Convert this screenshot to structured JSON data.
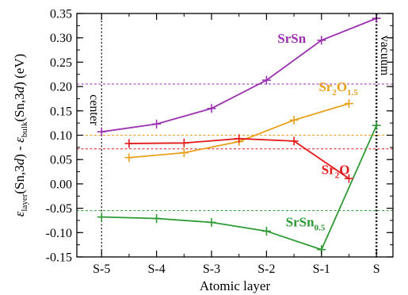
{
  "chart_data": {
    "type": "line",
    "xlabel": "Atomic layer",
    "ylabel": {
      "parts": [
        {
          "t": "ε",
          "style": "italic"
        },
        {
          "t": "layer",
          "style": "sub"
        },
        {
          "t": "(Sn,3",
          "style": "normal"
        },
        {
          "t": "d",
          "style": "italic"
        },
        {
          "t": ") - ",
          "style": "normal"
        },
        {
          "t": "ε",
          "style": "italic"
        },
        {
          "t": "bulk",
          "style": "sub"
        },
        {
          "t": "(Sn,3",
          "style": "normal"
        },
        {
          "t": "d",
          "style": "italic"
        },
        {
          "t": ") (eV)",
          "style": "normal"
        }
      ]
    },
    "x_ticks": [
      {
        "pos": 0,
        "label": "S-5"
      },
      {
        "pos": 1,
        "label": "S-4"
      },
      {
        "pos": 2,
        "label": "S-3"
      },
      {
        "pos": 3,
        "label": "S-2"
      },
      {
        "pos": 4,
        "label": "S-1"
      },
      {
        "pos": 5,
        "label": "S"
      }
    ],
    "xlim": [
      -0.45,
      5.3
    ],
    "ylim": [
      -0.15,
      0.35
    ],
    "y_ticks": [
      -0.15,
      -0.1,
      -0.05,
      0.0,
      0.05,
      0.1,
      0.15,
      0.2,
      0.25,
      0.3,
      0.35
    ],
    "y_minor_step": 0.025,
    "series": [
      {
        "name": "SrSn",
        "color": "#9b30b0",
        "x": [
          0,
          1,
          2,
          3,
          4,
          5
        ],
        "y": [
          0.107,
          0.123,
          0.155,
          0.213,
          0.295,
          0.34
        ],
        "label_parts": [
          {
            "t": "SrSn",
            "style": "normal"
          }
        ],
        "label_pos": [
          3.2,
          0.29
        ],
        "ref_line": 0.205
      },
      {
        "name": "Sr2O1.5",
        "color": "#e8a11c",
        "x": [
          0.5,
          1.5,
          2.5,
          3.5,
          4.5
        ],
        "y": [
          0.054,
          0.064,
          0.087,
          0.131,
          0.165
        ],
        "label_parts": [
          {
            "t": "Sr",
            "style": "normal"
          },
          {
            "t": "2",
            "style": "sub"
          },
          {
            "t": "O",
            "style": "normal"
          },
          {
            "t": "1.5",
            "style": "sub"
          }
        ],
        "label_pos": [
          3.95,
          0.19
        ],
        "ref_line": 0.1
      },
      {
        "name": "Sr2O",
        "color": "#e31a1c",
        "x": [
          0.5,
          1.5,
          2.5,
          3.5,
          4.5
        ],
        "y": [
          0.083,
          0.084,
          0.093,
          0.088,
          0.011
        ],
        "label_parts": [
          {
            "t": "Sr",
            "style": "normal"
          },
          {
            "t": "2",
            "style": "sub"
          },
          {
            "t": "O",
            "style": "normal"
          }
        ],
        "label_pos": [
          4.0,
          0.02
        ],
        "ref_line": 0.072
      },
      {
        "name": "SrSn0.5",
        "color": "#2e9a35",
        "x": [
          0,
          1,
          2,
          3,
          4,
          5
        ],
        "y": [
          -0.068,
          -0.071,
          -0.079,
          -0.097,
          -0.135,
          0.12
        ],
        "label_parts": [
          {
            "t": "SrSn",
            "style": "normal"
          },
          {
            "t": "0.5",
            "style": "sub"
          }
        ],
        "label_pos": [
          3.35,
          -0.087
        ],
        "ref_line": -0.055
      }
    ],
    "vlines": [
      {
        "x": 0,
        "label": "center",
        "style": "dotted",
        "weight": "thin"
      },
      {
        "x": 5,
        "label": "vacuum",
        "style": "dotted",
        "weight": "thick"
      }
    ],
    "grid": false,
    "legend": "none"
  }
}
